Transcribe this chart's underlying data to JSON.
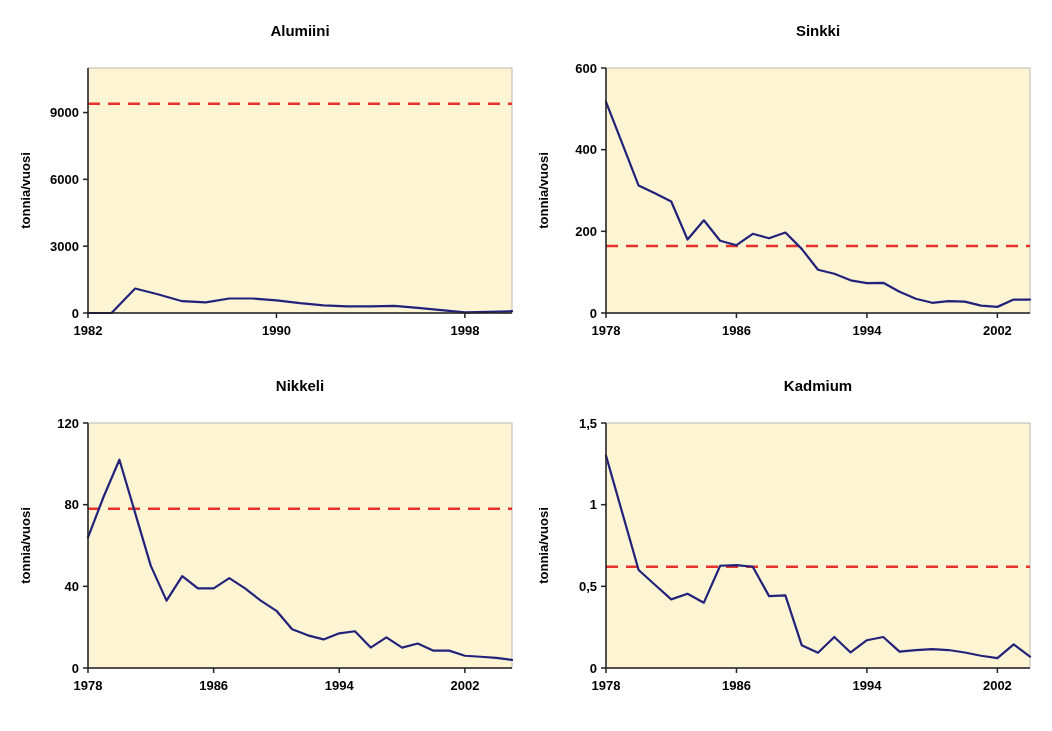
{
  "chart_data": [
    {
      "type": "line",
      "title": "Alumiini",
      "ylabel": "tonnia/vuosi",
      "x": [
        1982,
        1983,
        1984,
        1985,
        1986,
        1987,
        1988,
        1989,
        1990,
        1991,
        1992,
        1993,
        1994,
        1995,
        1996,
        1997,
        1998,
        1999,
        2000
      ],
      "series": [
        {
          "color": "#22227a",
          "values": [
            0,
            0,
            1100,
            830,
            530,
            480,
            650,
            650,
            570,
            440,
            340,
            300,
            300,
            320,
            230,
            130,
            30,
            50,
            80
          ]
        }
      ],
      "xlim": [
        1982,
        2000
      ],
      "ylim": [
        0,
        11000
      ],
      "xticks": [
        1982,
        1990,
        1998
      ],
      "yticks": [
        0,
        3000,
        6000,
        9000
      ],
      "ref_lines": [
        {
          "axis": "y",
          "value": 9400,
          "color": "#e8312a",
          "line_style": "dashed"
        }
      ]
    },
    {
      "type": "line",
      "title": "Sinkki",
      "ylabel": "tonnia/vuosi",
      "x": [
        1978,
        1979,
        1980,
        1981,
        1982,
        1983,
        1984,
        1985,
        1986,
        1987,
        1988,
        1989,
        1990,
        1991,
        1992,
        1993,
        1994,
        1995,
        1996,
        1997,
        1998,
        1999,
        2000,
        2001,
        2002,
        2003,
        2004
      ],
      "series": [
        {
          "color": "#22227a",
          "values": [
            517,
            415,
            312,
            293,
            273,
            180,
            227,
            177,
            166,
            194,
            183,
            197,
            157,
            106,
            96,
            80,
            73,
            74,
            52,
            35,
            25,
            29,
            28,
            18,
            15,
            33,
            33
          ]
        }
      ],
      "xlim": [
        1978,
        2004
      ],
      "ylim": [
        0,
        600
      ],
      "xticks": [
        1978,
        1986,
        1994,
        2002
      ],
      "yticks": [
        0,
        200,
        400,
        600
      ],
      "ref_lines": [
        {
          "axis": "y",
          "value": 164,
          "color": "#e8312a",
          "line_style": "dashed"
        }
      ]
    },
    {
      "type": "line",
      "title": "Nikkeli",
      "ylabel": "tonnia/vuosi",
      "x": [
        1978,
        1979,
        1980,
        1981,
        1982,
        1983,
        1984,
        1985,
        1986,
        1987,
        1988,
        1989,
        1990,
        1991,
        1992,
        1993,
        1994,
        1995,
        1996,
        1997,
        1998,
        1999,
        2000,
        2001,
        2002,
        2003,
        2004,
        2005
      ],
      "series": [
        {
          "color": "#22227a",
          "values": [
            64,
            84,
            102,
            76,
            50,
            33,
            45,
            39,
            39,
            44,
            39,
            33,
            28,
            19,
            16,
            14,
            17,
            18,
            10,
            15,
            10,
            12,
            8.5,
            8.5,
            6,
            5.5,
            5,
            4
          ]
        }
      ],
      "xlim": [
        1978,
        2005
      ],
      "ylim": [
        0,
        120
      ],
      "xticks": [
        1978,
        1986,
        1994,
        2002
      ],
      "yticks": [
        0,
        40,
        80,
        120
      ],
      "ref_lines": [
        {
          "axis": "y",
          "value": 78,
          "color": "#e8312a",
          "line_style": "dashed"
        }
      ]
    },
    {
      "type": "line",
      "title": "Kadmium",
      "ylabel": "tonnia/vuosi",
      "x": [
        1978,
        1979,
        1980,
        1981,
        1982,
        1983,
        1984,
        1985,
        1986,
        1987,
        1988,
        1989,
        1990,
        1991,
        1992,
        1993,
        1994,
        1995,
        1996,
        1997,
        1998,
        1999,
        2000,
        2001,
        2002,
        2003,
        2004
      ],
      "series": [
        {
          "color": "#22227a",
          "values": [
            1.3,
            0.95,
            0.6,
            0.51,
            0.42,
            0.455,
            0.4,
            0.626,
            0.63,
            0.62,
            0.44,
            0.445,
            0.14,
            0.093,
            0.19,
            0.095,
            0.17,
            0.19,
            0.1,
            0.11,
            0.115,
            0.11,
            0.095,
            0.075,
            0.06,
            0.145,
            0.07
          ]
        }
      ],
      "xlim": [
        1978,
        2004
      ],
      "ylim": [
        0,
        1.5
      ],
      "xticks": [
        1978,
        1986,
        1994,
        2002
      ],
      "yticks": [
        {
          "value": 0,
          "label": "0"
        },
        {
          "value": 0.5,
          "label": "0,5"
        },
        {
          "value": 1,
          "label": "1"
        },
        {
          "value": 1.5,
          "label": "1,5"
        }
      ],
      "ref_lines": [
        {
          "axis": "y",
          "value": 0.62,
          "color": "#e8312a",
          "line_style": "dashed"
        }
      ]
    }
  ]
}
